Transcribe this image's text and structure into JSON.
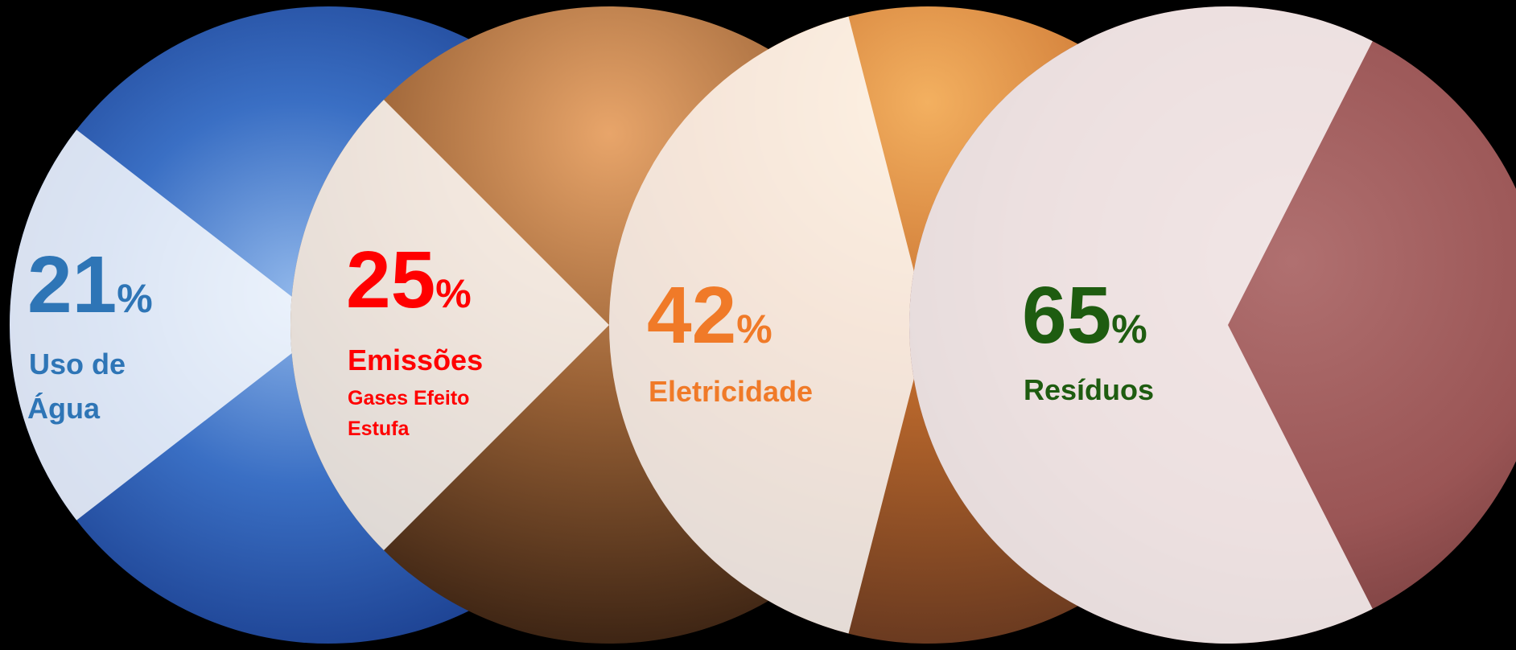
{
  "items": [
    {
      "value": 21,
      "unit": "%",
      "label_lines": [
        "Uso de",
        "Água"
      ]
    },
    {
      "value": 25,
      "unit": "%",
      "label_lines": [
        "Emissões"
      ],
      "sub_lines": [
        "Gases Efeito",
        "Estufa"
      ]
    },
    {
      "value": 42,
      "unit": "%",
      "label_lines": [
        "Eletricidade"
      ]
    },
    {
      "value": 65,
      "unit": "%",
      "label_lines": [
        "Resíduos"
      ]
    }
  ]
}
